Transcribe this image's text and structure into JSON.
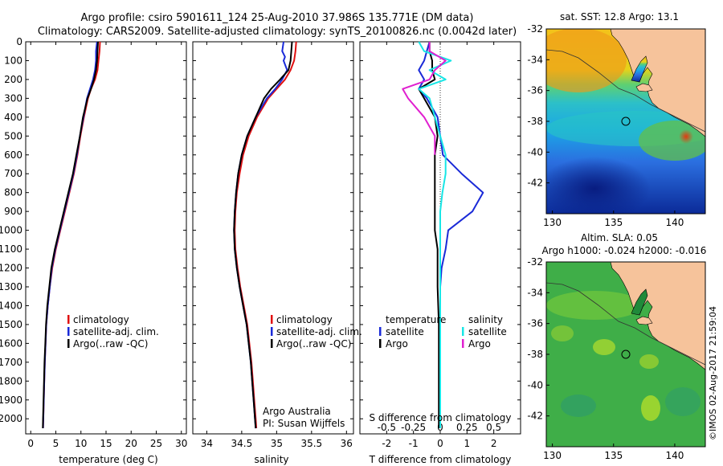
{
  "header": {
    "line1": "Argo profile: csiro 5901611_124 25-Aug-2010 37.986S 135.771E (DM data)",
    "line2": "Climatology: CARS2009. Satellite-adjusted climatology: synTS_20100826.nc (0.0042d later)"
  },
  "credit": "©IMOS 02-Aug-2017 21:59:04",
  "colors": {
    "red": "#e01010",
    "blue": "#1a2ad8",
    "black": "#000000",
    "cyan": "#18e6e6",
    "magenta": "#e020d0",
    "land": "#f6c39b"
  },
  "chart_data": [
    {
      "type": "line",
      "id": "temperature",
      "xlabel": "temperature (deg C)",
      "xlim": [
        -1,
        31
      ],
      "ylim": [
        2080,
        0
      ],
      "xticks": [
        "0",
        "5",
        "10",
        "15",
        "20",
        "25",
        "30"
      ],
      "yticks": [
        "0",
        "100",
        "200",
        "300",
        "400",
        "500",
        "600",
        "700",
        "800",
        "900",
        "1000",
        "1100",
        "1200",
        "1300",
        "1400",
        "1500",
        "1600",
        "1700",
        "1800",
        "1900",
        "2000"
      ],
      "legend": [
        "climatology",
        "satellite-adj. clim.",
        "Argo(..raw -QC)"
      ],
      "series": [
        {
          "name": "climatology",
          "color": "#e01010",
          "points": [
            [
              13.8,
              0
            ],
            [
              13.7,
              50
            ],
            [
              13.5,
              100
            ],
            [
              13.3,
              150
            ],
            [
              12.8,
              200
            ],
            [
              12.0,
              250
            ],
            [
              11.4,
              300
            ],
            [
              10.6,
              400
            ],
            [
              9.9,
              500
            ],
            [
              9.3,
              600
            ],
            [
              8.6,
              700
            ],
            [
              7.7,
              800
            ],
            [
              6.8,
              900
            ],
            [
              5.9,
              1000
            ],
            [
              5.0,
              1100
            ],
            [
              4.3,
              1200
            ],
            [
              3.8,
              1300
            ],
            [
              3.4,
              1400
            ],
            [
              3.1,
              1500
            ],
            [
              2.95,
              1600
            ],
            [
              2.8,
              1700
            ],
            [
              2.7,
              1800
            ],
            [
              2.6,
              1900
            ],
            [
              2.5,
              2000
            ],
            [
              2.45,
              2050
            ]
          ]
        },
        {
          "name": "satellite-adj. clim.",
          "color": "#1a2ad8",
          "points": [
            [
              13.2,
              0
            ],
            [
              13.0,
              50
            ],
            [
              13.0,
              100
            ],
            [
              12.8,
              150
            ],
            [
              12.4,
              200
            ],
            [
              11.8,
              250
            ],
            [
              11.2,
              300
            ],
            [
              10.5,
              400
            ],
            [
              9.8,
              500
            ],
            [
              9.2,
              600
            ],
            [
              8.5,
              700
            ],
            [
              7.6,
              800
            ],
            [
              6.7,
              900
            ],
            [
              5.8,
              1000
            ],
            [
              4.9,
              1100
            ],
            [
              4.2,
              1200
            ],
            [
              3.8,
              1300
            ],
            [
              3.4,
              1400
            ],
            [
              3.1,
              1500
            ],
            [
              2.95,
              1600
            ],
            [
              2.8,
              1700
            ],
            [
              2.7,
              1800
            ],
            [
              2.6,
              1900
            ],
            [
              2.5,
              2000
            ],
            [
              2.45,
              2050
            ]
          ]
        },
        {
          "name": "Argo(..raw -QC)",
          "color": "#000000",
          "points": [
            [
              13.4,
              0
            ],
            [
              13.3,
              50
            ],
            [
              13.2,
              100
            ],
            [
              13.0,
              150
            ],
            [
              12.6,
              200
            ],
            [
              12.0,
              250
            ],
            [
              11.3,
              300
            ],
            [
              10.4,
              400
            ],
            [
              9.8,
              500
            ],
            [
              9.1,
              600
            ],
            [
              8.4,
              700
            ],
            [
              7.5,
              800
            ],
            [
              6.6,
              900
            ],
            [
              5.7,
              1000
            ],
            [
              4.8,
              1100
            ],
            [
              4.1,
              1200
            ],
            [
              3.7,
              1300
            ],
            [
              3.3,
              1400
            ],
            [
              3.05,
              1500
            ],
            [
              2.9,
              1600
            ],
            [
              2.75,
              1700
            ],
            [
              2.65,
              1800
            ],
            [
              2.55,
              1900
            ],
            [
              2.45,
              2000
            ],
            [
              2.4,
              2050
            ]
          ]
        }
      ]
    },
    {
      "type": "line",
      "id": "salinity",
      "xlabel": "salinity",
      "xlim": [
        33.8,
        36.1
      ],
      "ylim": [
        2080,
        0
      ],
      "xticks": [
        "34",
        "34.5",
        "35",
        "35.5",
        "36"
      ],
      "legend": [
        "climatology",
        "satellite-adj. clim.",
        "Argo(..raw -QC)"
      ],
      "annotation": [
        "Argo Australia",
        "PI: Susan Wijffels"
      ],
      "series": [
        {
          "name": "climatology",
          "color": "#e01010",
          "points": [
            [
              35.28,
              0
            ],
            [
              35.27,
              50
            ],
            [
              35.25,
              100
            ],
            [
              35.2,
              150
            ],
            [
              35.12,
              200
            ],
            [
              35.0,
              250
            ],
            [
              34.88,
              300
            ],
            [
              34.72,
              400
            ],
            [
              34.6,
              500
            ],
            [
              34.52,
              600
            ],
            [
              34.47,
              700
            ],
            [
              34.43,
              800
            ],
            [
              34.41,
              900
            ],
            [
              34.4,
              1000
            ],
            [
              34.41,
              1100
            ],
            [
              34.44,
              1200
            ],
            [
              34.48,
              1300
            ],
            [
              34.53,
              1400
            ],
            [
              34.58,
              1500
            ],
            [
              34.61,
              1600
            ],
            [
              34.64,
              1700
            ],
            [
              34.66,
              1800
            ],
            [
              34.68,
              1900
            ],
            [
              34.7,
              2000
            ],
            [
              34.71,
              2050
            ]
          ]
        },
        {
          "name": "satellite-adj. clim.",
          "color": "#1a2ad8",
          "points": [
            [
              35.1,
              0
            ],
            [
              35.08,
              50
            ],
            [
              35.12,
              80
            ],
            [
              35.1,
              100
            ],
            [
              35.15,
              150
            ],
            [
              35.08,
              200
            ],
            [
              34.98,
              250
            ],
            [
              34.86,
              300
            ],
            [
              34.7,
              400
            ],
            [
              34.58,
              500
            ],
            [
              34.5,
              600
            ],
            [
              34.45,
              700
            ],
            [
              34.42,
              800
            ],
            [
              34.4,
              900
            ],
            [
              34.39,
              1000
            ],
            [
              34.4,
              1100
            ],
            [
              34.43,
              1200
            ],
            [
              34.47,
              1300
            ],
            [
              34.52,
              1400
            ],
            [
              34.57,
              1500
            ],
            [
              34.6,
              1600
            ],
            [
              34.63,
              1700
            ],
            [
              34.65,
              1800
            ],
            [
              34.67,
              1900
            ],
            [
              34.69,
              2000
            ],
            [
              34.7,
              2050
            ]
          ]
        },
        {
          "name": "Argo(..raw -QC)",
          "color": "#000000",
          "points": [
            [
              35.22,
              0
            ],
            [
              35.21,
              50
            ],
            [
              35.2,
              100
            ],
            [
              35.17,
              150
            ],
            [
              35.05,
              200
            ],
            [
              34.92,
              250
            ],
            [
              34.82,
              300
            ],
            [
              34.7,
              400
            ],
            [
              34.58,
              500
            ],
            [
              34.5,
              600
            ],
            [
              34.45,
              700
            ],
            [
              34.42,
              800
            ],
            [
              34.4,
              900
            ],
            [
              34.39,
              1000
            ],
            [
              34.4,
              1100
            ],
            [
              34.43,
              1200
            ],
            [
              34.47,
              1300
            ],
            [
              34.52,
              1400
            ],
            [
              34.57,
              1500
            ],
            [
              34.6,
              1600
            ],
            [
              34.63,
              1700
            ],
            [
              34.65,
              1800
            ],
            [
              34.67,
              1900
            ],
            [
              34.69,
              2000
            ],
            [
              34.7,
              2050
            ]
          ]
        }
      ]
    },
    {
      "type": "line",
      "id": "differences",
      "xlabel": "T difference from climatology",
      "xlabel_top": "S difference from climatology",
      "xlim": [
        -3,
        3
      ],
      "ylim": [
        2080,
        0
      ],
      "xticks": [
        "-2",
        "-1",
        "0",
        "1",
        "2"
      ],
      "top_ticks": [
        "-0.5",
        "-0.25",
        "0",
        "0.25",
        "0.5"
      ],
      "legend_headers": [
        "temperature",
        "salinity"
      ],
      "legend": [
        "satellite",
        "Argo",
        "satellite",
        "Argo"
      ],
      "series": [
        {
          "name": "satellite",
          "quantity": "temperature",
          "color": "#1a2ad8",
          "points": [
            [
              -0.4,
              0
            ],
            [
              -0.5,
              50
            ],
            [
              -0.6,
              100
            ],
            [
              -0.8,
              150
            ],
            [
              -0.6,
              200
            ],
            [
              -0.8,
              250
            ],
            [
              -0.5,
              300
            ],
            [
              -0.1,
              400
            ],
            [
              0,
              500
            ],
            [
              0.1,
              600
            ],
            [
              0.8,
              700
            ],
            [
              1.6,
              800
            ],
            [
              1.2,
              900
            ],
            [
              0.3,
              1000
            ],
            [
              0.2,
              1100
            ],
            [
              0.05,
              1200
            ],
            [
              0,
              1300
            ],
            [
              0,
              1500
            ],
            [
              0,
              1700
            ],
            [
              0,
              1900
            ],
            [
              0,
              2050
            ]
          ]
        },
        {
          "name": "Argo",
          "quantity": "temperature",
          "color": "#000000",
          "points": [
            [
              -0.4,
              0
            ],
            [
              -0.4,
              50
            ],
            [
              -0.3,
              100
            ],
            [
              -0.3,
              150
            ],
            [
              -0.2,
              200
            ],
            [
              -0.8,
              250
            ],
            [
              -0.6,
              300
            ],
            [
              -0.2,
              400
            ],
            [
              -0.1,
              500
            ],
            [
              -0.2,
              600
            ],
            [
              -0.2,
              700
            ],
            [
              -0.2,
              800
            ],
            [
              -0.2,
              900
            ],
            [
              -0.2,
              1000
            ],
            [
              -0.1,
              1100
            ],
            [
              -0.1,
              1200
            ],
            [
              -0.1,
              1300
            ],
            [
              -0.05,
              1500
            ],
            [
              -0.05,
              1700
            ],
            [
              -0.05,
              1900
            ],
            [
              -0.05,
              2050
            ]
          ]
        },
        {
          "name": "satellite",
          "quantity": "salinity",
          "color": "#18e6e6",
          "points": [
            [
              -0.2,
              0
            ],
            [
              -0.15,
              50
            ],
            [
              0.1,
              100
            ],
            [
              -0.1,
              150
            ],
            [
              0.05,
              200
            ],
            [
              -0.2,
              250
            ],
            [
              -0.1,
              300
            ],
            [
              -0.05,
              400
            ],
            [
              0,
              500
            ],
            [
              0.05,
              600
            ],
            [
              0.05,
              700
            ],
            [
              0.02,
              800
            ],
            [
              0,
              900
            ],
            [
              0,
              1100
            ],
            [
              0,
              1300
            ],
            [
              0,
              1500
            ],
            [
              0,
              1700
            ],
            [
              0,
              1900
            ],
            [
              0,
              2050
            ]
          ]
        },
        {
          "name": "Argo",
          "quantity": "salinity",
          "color": "#e020d0",
          "points": [
            [
              -0.1,
              0
            ],
            [
              -0.1,
              50
            ],
            [
              0.05,
              100
            ],
            [
              -0.05,
              150
            ],
            [
              -0.1,
              200
            ],
            [
              -0.35,
              250
            ],
            [
              -0.3,
              300
            ],
            [
              -0.15,
              400
            ],
            [
              -0.05,
              500
            ],
            [
              -0.05,
              600
            ]
          ]
        }
      ]
    },
    {
      "type": "heatmap",
      "id": "sst-map",
      "title": "sat. SST: 12.8 Argo: 13.1",
      "xlim": [
        129.5,
        142.5
      ],
      "ylim": [
        -44,
        -32
      ],
      "xticks": [
        "130",
        "135",
        "140"
      ],
      "yticks": [
        "-32",
        "-34",
        "-36",
        "-38",
        "-40",
        "-42"
      ],
      "marker": [
        135.771,
        -37.986
      ]
    },
    {
      "type": "heatmap",
      "id": "sla-map",
      "title": "Altim. SLA: 0.05",
      "subtitle": "Argo h1000: -0.024 h2000: -0.016",
      "xlim": [
        129.5,
        142.5
      ],
      "ylim": [
        -44,
        -32
      ],
      "xticks": [
        "130",
        "135",
        "140"
      ],
      "yticks": [
        "-32",
        "-34",
        "-36",
        "-38",
        "-40",
        "-42"
      ],
      "marker": [
        135.771,
        -37.986
      ]
    }
  ]
}
